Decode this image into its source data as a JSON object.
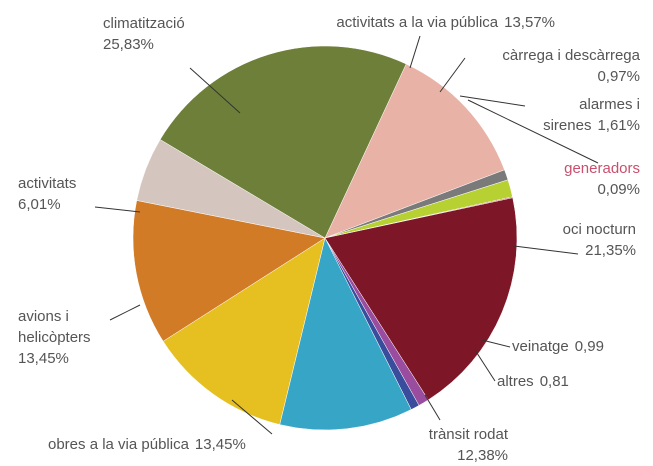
{
  "chart_data": {
    "type": "pie",
    "categories": [
      "activitats a la via pública",
      "càrrega i descàrrega",
      "alarmes i sirenes",
      "generadors",
      "oci nocturn",
      "veinatge",
      "altres",
      "trànsit rodat",
      "obres a la via pública",
      "avions i helicòpters",
      "activitats",
      "climatització"
    ],
    "values": [
      13.57,
      0.97,
      1.61,
      0.09,
      21.35,
      0.99,
      0.81,
      12.38,
      13.45,
      13.45,
      6.01,
      25.83
    ],
    "value_labels": [
      "13,57%",
      "0,97%",
      "1,61%",
      "0,09%",
      "21,35%",
      "0,99",
      "0,81",
      "12,38%",
      "13,45%",
      "13,45%",
      "6,01%",
      "25,83%"
    ],
    "colors": [
      "#e8b3a6",
      "#7a7a7a",
      "#b7d133",
      "#c0304a",
      "#7d1626",
      "#9a4c9e",
      "#3a4c9c",
      "#36a5c6",
      "#e6c021",
      "#d27b27",
      "#d4c5be",
      "#6e7f3a"
    ]
  }
}
